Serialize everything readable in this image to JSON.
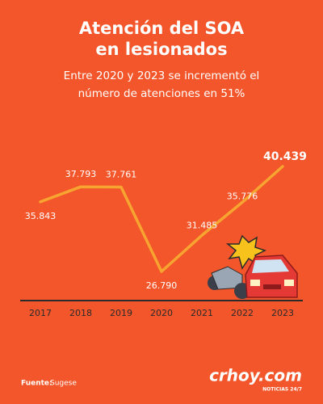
{
  "chart_data": {
    "type": "line",
    "title": [
      "Atención del SOA",
      "en lesionados"
    ],
    "subtitle": [
      "Entre 2020 y 2023 se incrementó el",
      "número de atenciones en 51%"
    ],
    "categories": [
      "2017",
      "2018",
      "2019",
      "2020",
      "2021",
      "2022",
      "2023"
    ],
    "series": [
      {
        "color": "#f7a530",
        "values": [
          35843,
          37793,
          37761,
          26790,
          31485,
          35776,
          40439
        ],
        "value_labels": [
          "35.843",
          "37.793",
          "37.761",
          "26.790",
          "31.485",
          "35.776",
          "40.439"
        ]
      }
    ],
    "source_label": "Fuente:",
    "source": "Sugese",
    "logo": "crhoy.com",
    "logo_tagline": "NOTICIAS 24/7"
  }
}
